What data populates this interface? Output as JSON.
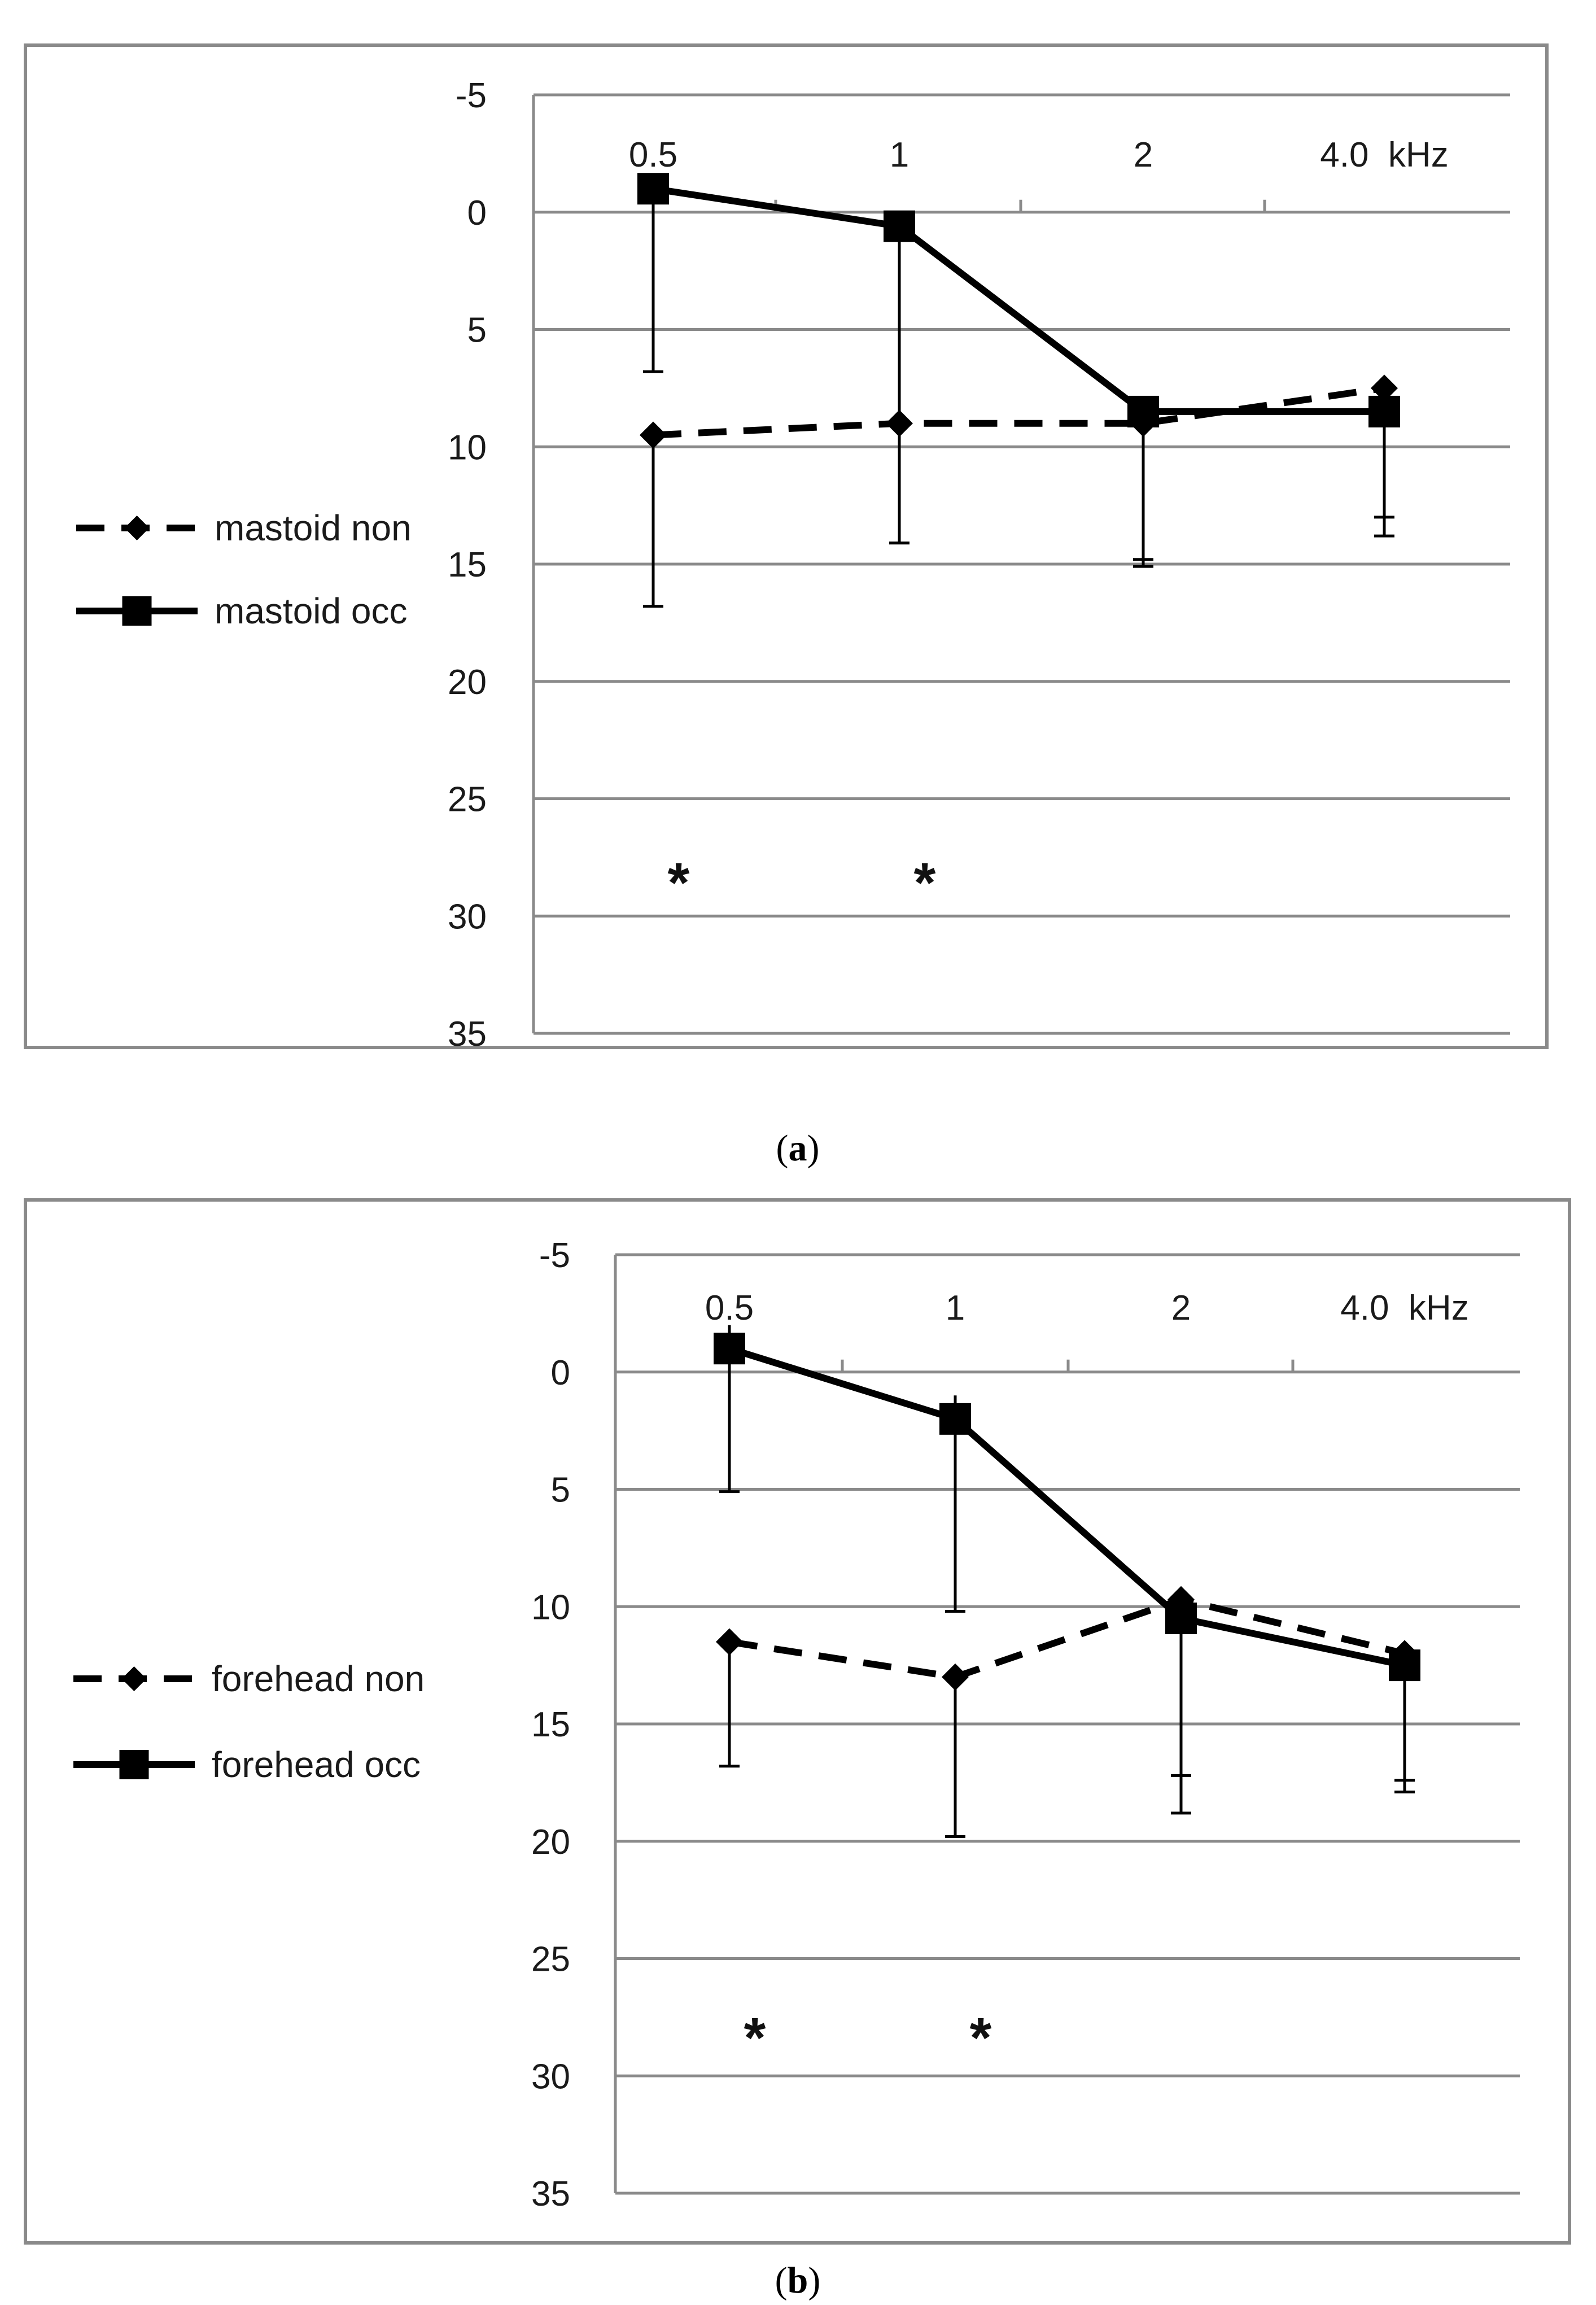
{
  "figure": {
    "panels": [
      {
        "caption_letter": "a"
      },
      {
        "caption_letter": "b"
      }
    ]
  },
  "chart_data": [
    {
      "type": "line",
      "panel": "a",
      "title": "",
      "xlabel": "",
      "ylabel": "",
      "categories": [
        "0.5",
        "1",
        "2",
        "4.0  kHz"
      ],
      "ylim": [
        35,
        -5
      ],
      "yticks": [
        -5,
        0,
        5,
        10,
        15,
        20,
        25,
        30,
        35
      ],
      "y_inverted": true,
      "grid": true,
      "legend_position": "left-middle",
      "series": [
        {
          "name": "mastoid non",
          "line_style": "dashed",
          "marker": "diamond",
          "color": "#000000",
          "values": [
            9.5,
            9.0,
            9.0,
            7.5
          ],
          "error_bars": [
            {
              "low": 9.5,
              "high": 16.8
            },
            {
              "low": 9.0,
              "high": 14.1
            },
            {
              "low": 9.0,
              "high": 14.8
            },
            {
              "low": 7.5,
              "high": 13.0
            }
          ]
        },
        {
          "name": "mastoid occ",
          "line_style": "solid",
          "marker": "square",
          "color": "#000000",
          "values": [
            -1.0,
            0.6,
            8.5,
            8.5
          ],
          "error_bars": [
            {
              "low": -1.0,
              "high": 6.8
            },
            {
              "low": 0.6,
              "high": 14.1
            },
            {
              "low": 8.5,
              "high": 15.1
            },
            {
              "low": 8.5,
              "high": 13.8
            }
          ]
        }
      ],
      "annotations": [
        {
          "text": "*",
          "category": "0.5",
          "y": 28.2
        },
        {
          "text": "*",
          "category": "1",
          "y": 28.2
        }
      ]
    },
    {
      "type": "line",
      "panel": "b",
      "title": "",
      "xlabel": "",
      "ylabel": "",
      "categories": [
        "0.5",
        "1",
        "2",
        "4.0  kHz"
      ],
      "ylim": [
        35,
        -5
      ],
      "yticks": [
        -5,
        0,
        5,
        10,
        15,
        20,
        25,
        30,
        35
      ],
      "y_inverted": true,
      "grid": true,
      "legend_position": "left-middle",
      "series": [
        {
          "name": "forehead non",
          "line_style": "dashed",
          "marker": "diamond",
          "color": "#000000",
          "values": [
            11.5,
            13.0,
            9.7,
            12.0
          ],
          "error_bars": [
            {
              "low": 11.5,
              "high": 16.8
            },
            {
              "low": 13.0,
              "high": 19.8
            },
            {
              "low": 9.7,
              "high": 17.2
            },
            {
              "low": 12.0,
              "high": 17.4
            }
          ]
        },
        {
          "name": "forehead occ",
          "line_style": "solid",
          "marker": "square",
          "color": "#000000",
          "values": [
            -1.0,
            2.0,
            10.5,
            12.5
          ],
          "error_bars": [
            {
              "low": -2.0,
              "high": 5.1
            },
            {
              "low": 1.0,
              "high": 10.2
            },
            {
              "low": 10.5,
              "high": 18.8
            },
            {
              "low": 12.5,
              "high": 17.9
            }
          ]
        }
      ],
      "annotations": [
        {
          "text": "*",
          "category": "0.5",
          "y": 28.0
        },
        {
          "text": "*",
          "category": "1",
          "y": 28.0
        }
      ]
    }
  ]
}
